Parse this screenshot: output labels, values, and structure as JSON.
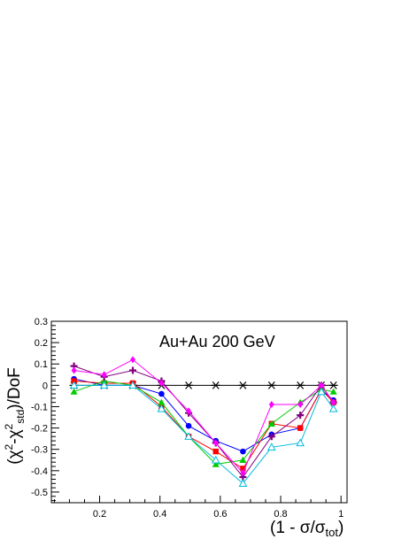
{
  "chart_data": {
    "type": "line",
    "title": "Au+Au 200 GeV",
    "xlabel": "(1 - σ/σ",
    "xlabel_sub": "tot",
    "xlabel_close": ")",
    "ylabel_parts": [
      "(χ",
      "2",
      "-χ",
      "2",
      "std",
      ")/DoF"
    ],
    "xlim": [
      0.04,
      1.02
    ],
    "ylim": [
      -0.55,
      0.3
    ],
    "x_ticks": [
      0.2,
      0.4,
      0.6,
      0.8,
      1.0
    ],
    "x_tick_labels": [
      "0.2",
      "0.4",
      "0.6",
      "0.8",
      "1"
    ],
    "y_ticks": [
      -0.5,
      -0.4,
      -0.3,
      -0.2,
      -0.1,
      0,
      0.1,
      0.2,
      0.3
    ],
    "y_tick_labels": [
      "-0.5",
      "-0.4",
      "-0.3",
      "-0.2",
      "-0.1",
      "0",
      "0.1",
      "0.2",
      "0.3"
    ],
    "grid": false,
    "x": [
      0.115,
      0.215,
      0.31,
      0.405,
      0.495,
      0.585,
      0.675,
      0.77,
      0.865,
      0.935,
      0.975
    ],
    "series": [
      {
        "color": "#000000",
        "marker": "asterisk",
        "values": [
          0,
          0,
          0,
          0,
          0,
          0,
          0,
          0,
          0,
          0,
          0
        ]
      },
      {
        "color": "#0000ff",
        "marker": "circle",
        "values": [
          0.03,
          0.0,
          0.0,
          -0.04,
          -0.19,
          -0.26,
          -0.31,
          -0.23,
          -0.2,
          -0.02,
          -0.07
        ]
      },
      {
        "color": "#ff0000",
        "marker": "square",
        "values": [
          0.02,
          0.01,
          0.01,
          -0.1,
          -0.24,
          -0.31,
          -0.39,
          -0.18,
          -0.2,
          -0.02,
          -0.08
        ]
      },
      {
        "color": "#00cc00",
        "marker": "triangle",
        "values": [
          -0.03,
          0.02,
          0.0,
          -0.08,
          -0.24,
          -0.37,
          -0.35,
          -0.18,
          -0.08,
          -0.02,
          -0.03
        ]
      },
      {
        "color": "#800080",
        "marker": "cross",
        "values": [
          0.09,
          0.04,
          0.07,
          0.02,
          -0.13,
          -0.27,
          -0.43,
          -0.24,
          -0.14,
          0.0,
          -0.08
        ]
      },
      {
        "color": "#ff00ff",
        "marker": "diamond",
        "values": [
          0.07,
          0.05,
          0.12,
          0.01,
          -0.12,
          -0.27,
          -0.41,
          -0.09,
          -0.09,
          0.0,
          -0.08
        ]
      },
      {
        "color": "#00bbdd",
        "marker": "open-triangle",
        "values": [
          0.0,
          0.0,
          0.0,
          -0.11,
          -0.24,
          -0.35,
          -0.46,
          -0.29,
          -0.27,
          -0.03,
          -0.11
        ]
      }
    ]
  }
}
